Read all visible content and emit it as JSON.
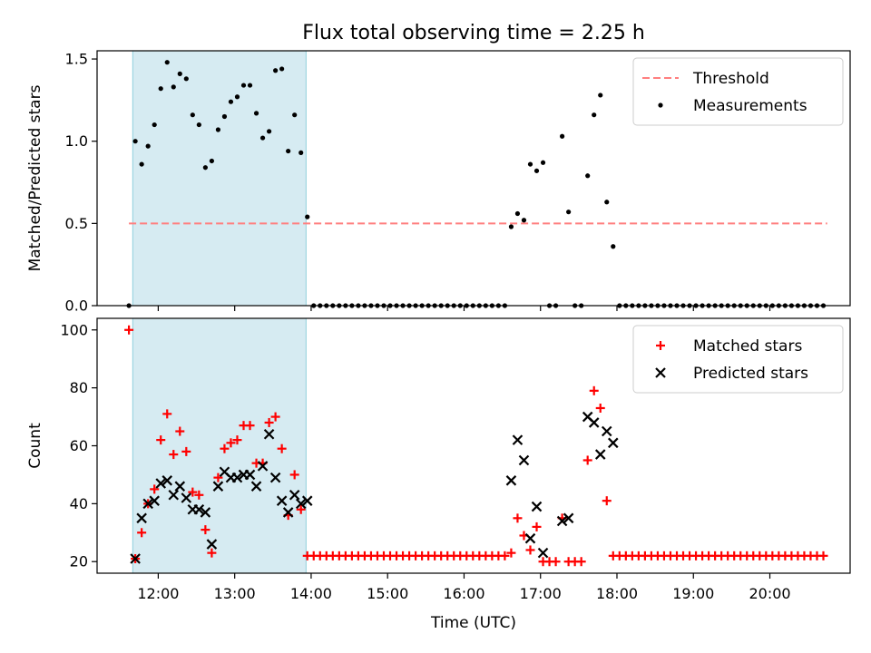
{
  "title": "Flux total observing time = 2.25 h",
  "chart_data": [
    {
      "type": "scatter",
      "ylabel": "Matched/Predicted stars",
      "xlabel": "",
      "ylim": [
        0,
        1.55
      ],
      "yticks": [
        0,
        0.5,
        1.0,
        1.5
      ],
      "ytick_labels": [
        "0.0",
        "0.5",
        "1.0",
        "1.5"
      ],
      "legend_position": "top-right",
      "shaded_interval": [
        "11:40",
        "13:56"
      ],
      "threshold": {
        "name": "Threshold",
        "y": 0.5,
        "x_range": [
          "11:37",
          "20:45"
        ],
        "color": "#ff7f7f",
        "style": "dashed"
      },
      "series": [
        {
          "name": "Measurements",
          "color": "#000000",
          "marker": "dot",
          "points": [
            [
              "11:37",
              0.0
            ],
            [
              "11:42",
              1.0
            ],
            [
              "11:47",
              0.86
            ],
            [
              "11:52",
              0.97
            ],
            [
              "11:57",
              1.1
            ],
            [
              "12:02",
              1.32
            ],
            [
              "12:07",
              1.48
            ],
            [
              "12:12",
              1.33
            ],
            [
              "12:17",
              1.41
            ],
            [
              "12:22",
              1.38
            ],
            [
              "12:27",
              1.16
            ],
            [
              "12:32",
              1.1
            ],
            [
              "12:37",
              0.84
            ],
            [
              "12:42",
              0.88
            ],
            [
              "12:47",
              1.07
            ],
            [
              "12:52",
              1.15
            ],
            [
              "12:57",
              1.24
            ],
            [
              "13:02",
              1.27
            ],
            [
              "13:07",
              1.34
            ],
            [
              "13:12",
              1.34
            ],
            [
              "13:17",
              1.17
            ],
            [
              "13:22",
              1.02
            ],
            [
              "13:27",
              1.06
            ],
            [
              "13:32",
              1.43
            ],
            [
              "13:37",
              1.44
            ],
            [
              "13:42",
              0.94
            ],
            [
              "13:47",
              1.16
            ],
            [
              "13:52",
              0.93
            ],
            [
              "13:57",
              0.54
            ],
            [
              "14:02",
              0
            ],
            [
              "14:07",
              0
            ],
            [
              "14:12",
              0
            ],
            [
              "14:17",
              0
            ],
            [
              "14:22",
              0
            ],
            [
              "14:27",
              0
            ],
            [
              "14:32",
              0
            ],
            [
              "14:37",
              0
            ],
            [
              "14:42",
              0
            ],
            [
              "14:47",
              0
            ],
            [
              "14:52",
              0
            ],
            [
              "14:57",
              0
            ],
            [
              "15:02",
              0
            ],
            [
              "15:07",
              0
            ],
            [
              "15:12",
              0
            ],
            [
              "15:17",
              0
            ],
            [
              "15:22",
              0
            ],
            [
              "15:27",
              0
            ],
            [
              "15:32",
              0
            ],
            [
              "15:37",
              0
            ],
            [
              "15:42",
              0
            ],
            [
              "15:47",
              0
            ],
            [
              "15:52",
              0
            ],
            [
              "15:57",
              0
            ],
            [
              "16:02",
              0
            ],
            [
              "16:07",
              0
            ],
            [
              "16:12",
              0
            ],
            [
              "16:17",
              0
            ],
            [
              "16:22",
              0
            ],
            [
              "16:27",
              0
            ],
            [
              "16:32",
              0
            ],
            [
              "16:37",
              0.48
            ],
            [
              "16:42",
              0.56
            ],
            [
              "16:47",
              0.52
            ],
            [
              "16:52",
              0.86
            ],
            [
              "16:57",
              0.82
            ],
            [
              "17:02",
              0.87
            ],
            [
              "17:07",
              0
            ],
            [
              "17:12",
              0
            ],
            [
              "17:17",
              1.03
            ],
            [
              "17:22",
              0.57
            ],
            [
              "17:27",
              0
            ],
            [
              "17:32",
              0
            ],
            [
              "17:37",
              0.79
            ],
            [
              "17:42",
              1.16
            ],
            [
              "17:47",
              1.28
            ],
            [
              "17:52",
              0.63
            ],
            [
              "17:57",
              0.36
            ],
            [
              "18:02",
              0
            ],
            [
              "18:07",
              0
            ],
            [
              "18:12",
              0
            ],
            [
              "18:17",
              0
            ],
            [
              "18:22",
              0
            ],
            [
              "18:27",
              0
            ],
            [
              "18:32",
              0
            ],
            [
              "18:37",
              0
            ],
            [
              "18:42",
              0
            ],
            [
              "18:47",
              0
            ],
            [
              "18:52",
              0
            ],
            [
              "18:57",
              0
            ],
            [
              "19:02",
              0
            ],
            [
              "19:07",
              0
            ],
            [
              "19:12",
              0
            ],
            [
              "19:17",
              0
            ],
            [
              "19:22",
              0
            ],
            [
              "19:27",
              0
            ],
            [
              "19:32",
              0
            ],
            [
              "19:37",
              0
            ],
            [
              "19:42",
              0
            ],
            [
              "19:47",
              0
            ],
            [
              "19:52",
              0
            ],
            [
              "19:57",
              0
            ],
            [
              "20:02",
              0
            ],
            [
              "20:07",
              0
            ],
            [
              "20:12",
              0
            ],
            [
              "20:17",
              0
            ],
            [
              "20:22",
              0
            ],
            [
              "20:27",
              0
            ],
            [
              "20:32",
              0
            ],
            [
              "20:37",
              0
            ],
            [
              "20:42",
              0
            ]
          ]
        }
      ]
    },
    {
      "type": "scatter",
      "ylabel": "Count",
      "xlabel": "Time (UTC)",
      "ylim": [
        16,
        104
      ],
      "yticks": [
        20,
        40,
        60,
        80,
        100
      ],
      "ytick_labels": [
        "20",
        "40",
        "60",
        "80",
        "100"
      ],
      "xticks": [
        "12:00",
        "13:00",
        "14:00",
        "15:00",
        "16:00",
        "17:00",
        "18:00",
        "19:00",
        "20:00"
      ],
      "xlim": [
        "11:12",
        "21:03"
      ],
      "legend_position": "top-right",
      "shaded_interval": [
        "11:40",
        "13:56"
      ],
      "series": [
        {
          "name": "Matched stars",
          "color": "#ff0000",
          "marker": "plus",
          "points": [
            [
              "11:37",
              100
            ],
            [
              "11:42",
              21
            ],
            [
              "11:47",
              30
            ],
            [
              "11:52",
              40
            ],
            [
              "11:57",
              45
            ],
            [
              "12:02",
              62
            ],
            [
              "12:07",
              71
            ],
            [
              "12:12",
              57
            ],
            [
              "12:17",
              65
            ],
            [
              "12:22",
              58
            ],
            [
              "12:27",
              44
            ],
            [
              "12:32",
              43
            ],
            [
              "12:37",
              31
            ],
            [
              "12:42",
              23
            ],
            [
              "12:47",
              49
            ],
            [
              "12:52",
              59
            ],
            [
              "12:57",
              61
            ],
            [
              "13:02",
              62
            ],
            [
              "13:07",
              67
            ],
            [
              "13:12",
              67
            ],
            [
              "13:17",
              54
            ],
            [
              "13:22",
              54
            ],
            [
              "13:27",
              68
            ],
            [
              "13:32",
              70
            ],
            [
              "13:37",
              59
            ],
            [
              "13:42",
              36
            ],
            [
              "13:47",
              50
            ],
            [
              "13:52",
              38
            ],
            [
              "13:57",
              22
            ],
            [
              "14:02",
              22
            ],
            [
              "14:07",
              22
            ],
            [
              "14:12",
              22
            ],
            [
              "14:17",
              22
            ],
            [
              "14:22",
              22
            ],
            [
              "14:27",
              22
            ],
            [
              "14:32",
              22
            ],
            [
              "14:37",
              22
            ],
            [
              "14:42",
              22
            ],
            [
              "14:47",
              22
            ],
            [
              "14:52",
              22
            ],
            [
              "14:57",
              22
            ],
            [
              "15:02",
              22
            ],
            [
              "15:07",
              22
            ],
            [
              "15:12",
              22
            ],
            [
              "15:17",
              22
            ],
            [
              "15:22",
              22
            ],
            [
              "15:27",
              22
            ],
            [
              "15:32",
              22
            ],
            [
              "15:37",
              22
            ],
            [
              "15:42",
              22
            ],
            [
              "15:47",
              22
            ],
            [
              "15:52",
              22
            ],
            [
              "15:57",
              22
            ],
            [
              "16:02",
              22
            ],
            [
              "16:07",
              22
            ],
            [
              "16:12",
              22
            ],
            [
              "16:17",
              22
            ],
            [
              "16:22",
              22
            ],
            [
              "16:27",
              22
            ],
            [
              "16:32",
              22
            ],
            [
              "16:37",
              23
            ],
            [
              "16:42",
              35
            ],
            [
              "16:47",
              29
            ],
            [
              "16:52",
              24
            ],
            [
              "16:57",
              32
            ],
            [
              "17:02",
              20
            ],
            [
              "17:07",
              20
            ],
            [
              "17:12",
              20
            ],
            [
              "17:17",
              35
            ],
            [
              "17:22",
              20
            ],
            [
              "17:27",
              20
            ],
            [
              "17:32",
              20
            ],
            [
              "17:37",
              55
            ],
            [
              "17:42",
              79
            ],
            [
              "17:47",
              73
            ],
            [
              "17:52",
              41
            ],
            [
              "17:57",
              22
            ],
            [
              "18:02",
              22
            ],
            [
              "18:07",
              22
            ],
            [
              "18:12",
              22
            ],
            [
              "18:17",
              22
            ],
            [
              "18:22",
              22
            ],
            [
              "18:27",
              22
            ],
            [
              "18:32",
              22
            ],
            [
              "18:37",
              22
            ],
            [
              "18:42",
              22
            ],
            [
              "18:47",
              22
            ],
            [
              "18:52",
              22
            ],
            [
              "18:57",
              22
            ],
            [
              "19:02",
              22
            ],
            [
              "19:07",
              22
            ],
            [
              "19:12",
              22
            ],
            [
              "19:17",
              22
            ],
            [
              "19:22",
              22
            ],
            [
              "19:27",
              22
            ],
            [
              "19:32",
              22
            ],
            [
              "19:37",
              22
            ],
            [
              "19:42",
              22
            ],
            [
              "19:47",
              22
            ],
            [
              "19:52",
              22
            ],
            [
              "19:57",
              22
            ],
            [
              "20:02",
              22
            ],
            [
              "20:07",
              22
            ],
            [
              "20:12",
              22
            ],
            [
              "20:17",
              22
            ],
            [
              "20:22",
              22
            ],
            [
              "20:27",
              22
            ],
            [
              "20:32",
              22
            ],
            [
              "20:37",
              22
            ],
            [
              "20:42",
              22
            ]
          ]
        },
        {
          "name": "Predicted stars",
          "color": "#000000",
          "marker": "x",
          "points": [
            [
              "11:42",
              21
            ],
            [
              "11:47",
              35
            ],
            [
              "11:52",
              40
            ],
            [
              "11:57",
              41
            ],
            [
              "12:02",
              47
            ],
            [
              "12:07",
              48
            ],
            [
              "12:12",
              43
            ],
            [
              "12:17",
              46
            ],
            [
              "12:22",
              42
            ],
            [
              "12:27",
              38
            ],
            [
              "12:32",
              38
            ],
            [
              "12:37",
              37
            ],
            [
              "12:42",
              26
            ],
            [
              "12:47",
              46
            ],
            [
              "12:52",
              51
            ],
            [
              "12:57",
              49
            ],
            [
              "13:02",
              49
            ],
            [
              "13:07",
              50
            ],
            [
              "13:12",
              50
            ],
            [
              "13:17",
              46
            ],
            [
              "13:22",
              53
            ],
            [
              "13:27",
              64
            ],
            [
              "13:32",
              49
            ],
            [
              "13:37",
              41
            ],
            [
              "13:42",
              37
            ],
            [
              "13:47",
              43
            ],
            [
              "13:52",
              40
            ],
            [
              "13:57",
              41
            ],
            [
              "16:37",
              48
            ],
            [
              "16:42",
              62
            ],
            [
              "16:47",
              55
            ],
            [
              "16:52",
              28
            ],
            [
              "16:57",
              39
            ],
            [
              "17:02",
              23
            ],
            [
              "17:17",
              34
            ],
            [
              "17:22",
              35
            ],
            [
              "17:37",
              70
            ],
            [
              "17:42",
              68
            ],
            [
              "17:47",
              57
            ],
            [
              "17:52",
              65
            ],
            [
              "17:57",
              61
            ]
          ]
        }
      ]
    }
  ]
}
